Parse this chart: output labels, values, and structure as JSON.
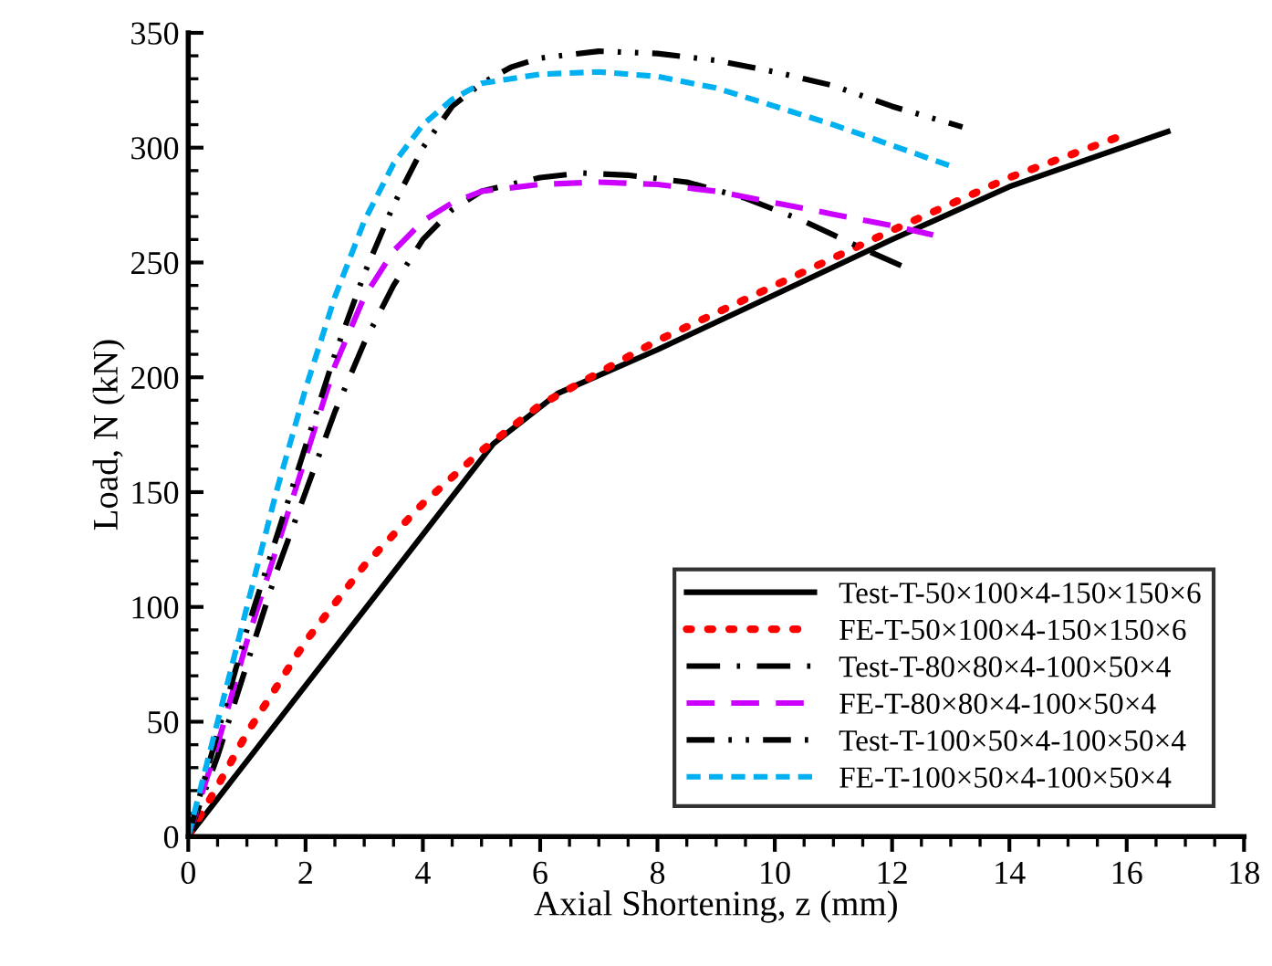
{
  "chart_data": {
    "type": "line",
    "xlabel": "Axial Shortening, z (mm)",
    "ylabel": "Load, N (kN)",
    "xlim": [
      0,
      18
    ],
    "xticks": [
      0,
      2,
      4,
      6,
      8,
      10,
      12,
      14,
      16,
      18
    ],
    "ylim": [
      0,
      350
    ],
    "yticks": [
      0,
      50,
      100,
      150,
      200,
      250,
      300,
      350
    ],
    "grid": false,
    "legend": "bottom right",
    "marker": "none",
    "series": [
      {
        "name": "Test-T-50×100×4-150×150×6",
        "color": "#000000",
        "line_style": "solid",
        "x": [
          0,
          5.2,
          6.3,
          8,
          10,
          12,
          14,
          16.7
        ],
        "values": [
          0,
          171,
          193,
          212,
          236,
          260,
          283,
          307
        ]
      },
      {
        "name": "FE-T-50×100×4-150×150×6",
        "color": "#ff0000",
        "line_style": "dotted",
        "x": [
          0,
          0.5,
          1,
          2,
          3,
          4,
          5,
          6,
          8,
          10,
          12,
          14,
          16.0
        ],
        "values": [
          0,
          22,
          45,
          85,
          118,
          145,
          168,
          188,
          216,
          240,
          264,
          287,
          306
        ]
      },
      {
        "name": "Test-T-80×80×4-100×50×4",
        "color": "#000000",
        "line_style": "dashdot",
        "x": [
          0,
          0.5,
          1,
          1.5,
          2,
          2.5,
          3,
          3.5,
          4,
          4.5,
          5,
          6,
          6.7,
          7.5,
          8.5,
          9.5,
          10.5,
          11.5,
          12.3
        ],
        "values": [
          0,
          35,
          75,
          115,
          150,
          185,
          215,
          240,
          260,
          273,
          281,
          287,
          289,
          288,
          285,
          278,
          268,
          256,
          247
        ]
      },
      {
        "name": "FE-T-80×80×4-100×50×4",
        "color": "#cc00ff",
        "line_style": "dashed",
        "x": [
          0,
          0.5,
          1,
          1.5,
          2,
          2.5,
          3,
          3.5,
          4,
          4.5,
          5,
          6,
          7,
          8,
          9,
          10,
          11,
          12,
          12.7
        ],
        "values": [
          0,
          40,
          85,
          125,
          165,
          205,
          235,
          255,
          268,
          276,
          281,
          284,
          285,
          284,
          281,
          276,
          271,
          266,
          262
        ]
      },
      {
        "name": "Test-T-100×50×4-100×50×4",
        "color": "#000000",
        "line_style": "dashdotdot",
        "x": [
          0,
          0.5,
          1,
          1.5,
          2,
          2.5,
          3,
          3.5,
          4,
          4.5,
          5,
          5.5,
          6,
          7,
          8,
          9,
          10,
          11,
          12,
          13.2
        ],
        "values": [
          0,
          45,
          90,
          130,
          170,
          210,
          245,
          275,
          300,
          318,
          328,
          335,
          339,
          342,
          341,
          338,
          333,
          327,
          318,
          309
        ]
      },
      {
        "name": "FE-T-100×50×4-100×50×4",
        "color": "#00b0f0",
        "line_style": "shortdash",
        "x": [
          0,
          0.5,
          1,
          1.5,
          2,
          2.5,
          3,
          3.5,
          4,
          4.5,
          5,
          6,
          7,
          8,
          9,
          10,
          11,
          12,
          13.0
        ],
        "values": [
          0,
          50,
          100,
          150,
          195,
          235,
          268,
          293,
          310,
          321,
          328,
          332,
          333,
          331,
          326,
          318,
          310,
          301,
          292
        ]
      }
    ]
  }
}
